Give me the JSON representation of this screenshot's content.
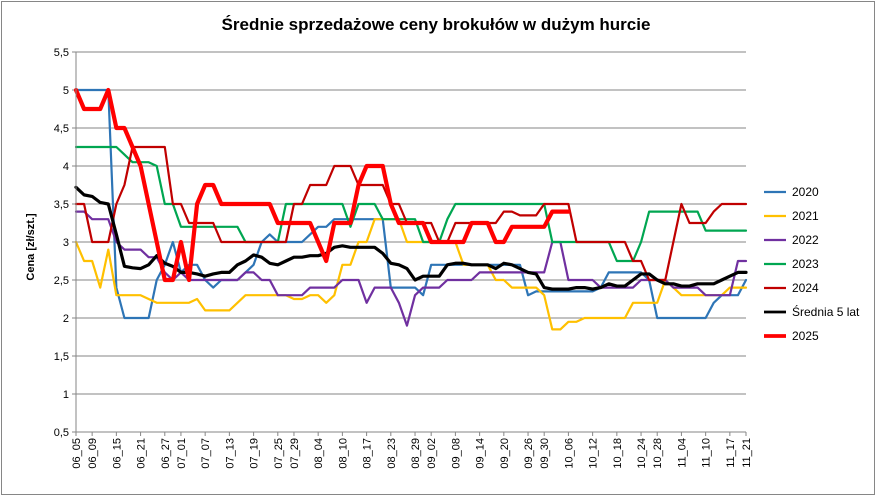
{
  "chart_data": {
    "type": "line",
    "title": "Średnie sprzedażowe ceny brokułów w dużym hurcie",
    "ylabel": "Cena [zł/szt.]",
    "xlabel": "",
    "ylim": [
      0.5,
      5.5
    ],
    "yticks": [
      "0,5",
      "1",
      "1,5",
      "2",
      "2,5",
      "3",
      "3,5",
      "4",
      "4,5",
      "5",
      "5,5"
    ],
    "grid": "horizontal",
    "legend_position": "right",
    "x": [
      "06_05",
      "06_07",
      "06_09",
      "06_11",
      "06_13",
      "06_15",
      "06_17",
      "06_19",
      "06_21",
      "06_23",
      "06_25",
      "06_27",
      "06_29",
      "07_01",
      "07_03",
      "07_05",
      "07_07",
      "07_09",
      "07_11",
      "07_13",
      "07_15",
      "07_17",
      "07_19",
      "07_21",
      "07_23",
      "07_25",
      "07_27",
      "07_29",
      "07_31",
      "08_02",
      "08_04",
      "08_06",
      "08_08",
      "08_10",
      "08_12",
      "08_14",
      "08_17",
      "08_19",
      "08_21",
      "08_23",
      "08_25",
      "08_27",
      "08_29",
      "08_31",
      "09_02",
      "09_04",
      "09_06",
      "09_08",
      "09_10",
      "09_12",
      "09_14",
      "09_16",
      "09_18",
      "09_20",
      "09_22",
      "09_24",
      "09_26",
      "09_28",
      "09_30",
      "10_02",
      "10_04",
      "10_06",
      "10_08",
      "10_10",
      "10_12",
      "10_14",
      "10_16",
      "10_18",
      "10_20",
      "10_22",
      "10_24",
      "10_26",
      "10_28",
      "10_30",
      "11_01",
      "11_04",
      "11_06",
      "11_08",
      "11_10",
      "11_12",
      "11_15",
      "11_17",
      "11_19",
      "11_21"
    ],
    "xtick_labels": [
      "06_05",
      "06_09",
      "06_15",
      "06_21",
      "06_27",
      "07_01",
      "07_07",
      "07_13",
      "07_19",
      "07_25",
      "07_29",
      "08_04",
      "08_10",
      "08_17",
      "08_23",
      "08_29",
      "09_02",
      "09_08",
      "09_14",
      "09_20",
      "09_26",
      "09_30",
      "10_06",
      "10_12",
      "10_18",
      "10_24",
      "10_28",
      "11_04",
      "11_10",
      "11_17",
      "11_21"
    ],
    "series": [
      {
        "name": "2020",
        "color": "#2E75B6",
        "width": 2.2,
        "values": [
          5.0,
          5.0,
          5.0,
          5.0,
          5.0,
          2.4,
          2.0,
          2.0,
          2.0,
          2.0,
          2.5,
          2.7,
          3.0,
          2.6,
          2.7,
          2.7,
          2.5,
          2.4,
          2.5,
          2.5,
          2.5,
          2.6,
          2.7,
          3.0,
          3.1,
          3.0,
          3.0,
          3.0,
          3.0,
          3.1,
          3.2,
          3.2,
          3.3,
          3.3,
          3.3,
          3.3,
          3.3,
          3.3,
          3.3,
          2.4,
          2.4,
          2.4,
          2.4,
          2.3,
          2.7,
          2.7,
          2.7,
          2.7,
          2.7,
          2.7,
          2.7,
          2.7,
          2.7,
          2.7,
          2.7,
          2.7,
          2.3,
          2.35,
          2.35,
          2.35,
          2.35,
          2.35,
          2.35,
          2.35,
          2.35,
          2.4,
          2.6,
          2.6,
          2.6,
          2.6,
          2.6,
          2.5,
          2.0,
          2.0,
          2.0,
          2.0,
          2.0,
          2.0,
          2.0,
          2.2,
          2.3,
          2.3,
          2.3,
          2.5
        ]
      },
      {
        "name": "2021",
        "color": "#FFC000",
        "width": 2.2,
        "values": [
          3.0,
          2.75,
          2.75,
          2.4,
          2.9,
          2.3,
          2.3,
          2.3,
          2.3,
          2.25,
          2.2,
          2.2,
          2.2,
          2.2,
          2.2,
          2.25,
          2.1,
          2.1,
          2.1,
          2.1,
          2.2,
          2.3,
          2.3,
          2.3,
          2.3,
          2.3,
          2.3,
          2.25,
          2.25,
          2.3,
          2.3,
          2.2,
          2.3,
          2.7,
          2.7,
          3.0,
          3.0,
          3.3,
          3.3,
          3.3,
          3.3,
          3.0,
          3.0,
          3.0,
          3.0,
          3.0,
          3.0,
          3.0,
          2.7,
          2.7,
          2.7,
          2.7,
          2.5,
          2.5,
          2.4,
          2.4,
          2.4,
          2.4,
          2.3,
          1.85,
          1.85,
          1.95,
          1.95,
          2.0,
          2.0,
          2.0,
          2.0,
          2.0,
          2.0,
          2.2,
          2.2,
          2.2,
          2.2,
          2.5,
          2.4,
          2.3,
          2.3,
          2.3,
          2.3,
          2.3,
          2.3,
          2.4,
          2.4,
          2.4
        ]
      },
      {
        "name": "2022",
        "color": "#7030A0",
        "width": 2.2,
        "values": [
          3.4,
          3.4,
          3.3,
          3.3,
          3.3,
          3.0,
          2.9,
          2.9,
          2.9,
          2.8,
          2.8,
          2.6,
          2.5,
          2.6,
          2.5,
          2.5,
          2.5,
          2.5,
          2.5,
          2.5,
          2.5,
          2.6,
          2.6,
          2.5,
          2.5,
          2.3,
          2.3,
          2.3,
          2.3,
          2.4,
          2.4,
          2.4,
          2.4,
          2.5,
          2.5,
          2.5,
          2.2,
          2.4,
          2.4,
          2.4,
          2.2,
          1.9,
          2.3,
          2.4,
          2.4,
          2.4,
          2.5,
          2.5,
          2.5,
          2.5,
          2.6,
          2.6,
          2.6,
          2.6,
          2.6,
          2.6,
          2.6,
          2.6,
          2.6,
          3.0,
          3.0,
          2.5,
          2.5,
          2.5,
          2.5,
          2.4,
          2.4,
          2.4,
          2.4,
          2.4,
          2.5,
          2.5,
          2.5,
          2.5,
          2.4,
          2.4,
          2.4,
          2.4,
          2.3,
          2.3,
          2.3,
          2.3,
          2.75,
          2.75
        ]
      },
      {
        "name": "2023",
        "color": "#00A651",
        "width": 2.2,
        "values": [
          4.25,
          4.25,
          4.25,
          4.25,
          4.25,
          4.25,
          4.15,
          4.05,
          4.05,
          4.05,
          4.0,
          3.5,
          3.5,
          3.2,
          3.2,
          3.2,
          3.2,
          3.2,
          3.2,
          3.2,
          3.2,
          3.0,
          3.0,
          3.0,
          3.0,
          3.0,
          3.5,
          3.5,
          3.5,
          3.5,
          3.5,
          3.5,
          3.5,
          3.5,
          3.2,
          3.5,
          3.5,
          3.5,
          3.3,
          3.3,
          3.3,
          3.3,
          3.3,
          3.0,
          3.0,
          3.0,
          3.3,
          3.5,
          3.5,
          3.5,
          3.5,
          3.5,
          3.5,
          3.5,
          3.5,
          3.5,
          3.5,
          3.5,
          3.5,
          3.0,
          3.0,
          3.0,
          3.0,
          3.0,
          3.0,
          3.0,
          3.0,
          2.75,
          2.75,
          2.75,
          3.0,
          3.4,
          3.4,
          3.4,
          3.4,
          3.4,
          3.4,
          3.4,
          3.15,
          3.15,
          3.15,
          3.15,
          3.15,
          3.15
        ]
      },
      {
        "name": "2024",
        "color": "#C00000",
        "width": 2.2,
        "values": [
          3.5,
          3.5,
          3.0,
          3.0,
          3.0,
          3.5,
          3.75,
          4.25,
          4.25,
          4.25,
          4.25,
          4.25,
          3.5,
          3.5,
          3.25,
          3.25,
          3.25,
          3.25,
          3.0,
          3.0,
          3.0,
          3.0,
          3.0,
          3.0,
          3.0,
          3.0,
          3.0,
          3.5,
          3.5,
          3.75,
          3.75,
          3.75,
          4.0,
          4.0,
          4.0,
          3.75,
          3.75,
          3.75,
          3.75,
          3.5,
          3.5,
          3.25,
          3.25,
          3.25,
          3.25,
          3.0,
          3.0,
          3.25,
          3.25,
          3.25,
          3.25,
          3.25,
          3.25,
          3.4,
          3.4,
          3.35,
          3.35,
          3.35,
          3.5,
          3.5,
          3.5,
          3.5,
          3.0,
          3.0,
          3.0,
          3.0,
          3.0,
          3.0,
          3.0,
          2.75,
          2.75,
          2.5,
          2.5,
          2.5,
          3.0,
          3.5,
          3.25,
          3.25,
          3.25,
          3.4,
          3.5,
          3.5,
          3.5,
          3.5
        ]
      },
      {
        "name": "Średnia 5 lat",
        "color": "#000000",
        "width": 3.2,
        "values": [
          3.72,
          3.62,
          3.6,
          3.52,
          3.5,
          3.1,
          2.68,
          2.66,
          2.65,
          2.7,
          2.82,
          2.72,
          2.68,
          2.6,
          2.6,
          2.58,
          2.55,
          2.58,
          2.6,
          2.6,
          2.7,
          2.75,
          2.83,
          2.8,
          2.72,
          2.7,
          2.75,
          2.8,
          2.8,
          2.82,
          2.82,
          2.85,
          2.93,
          2.95,
          2.93,
          2.93,
          2.93,
          2.93,
          2.85,
          2.72,
          2.7,
          2.65,
          2.5,
          2.55,
          2.55,
          2.55,
          2.7,
          2.72,
          2.72,
          2.7,
          2.7,
          2.7,
          2.65,
          2.72,
          2.7,
          2.65,
          2.6,
          2.58,
          2.4,
          2.38,
          2.38,
          2.38,
          2.4,
          2.4,
          2.38,
          2.4,
          2.45,
          2.42,
          2.42,
          2.5,
          2.58,
          2.58,
          2.5,
          2.45,
          2.45,
          2.42,
          2.42,
          2.45,
          2.45,
          2.45,
          2.5,
          2.55,
          2.6,
          2.6
        ]
      },
      {
        "name": "2025",
        "color": "#FF0000",
        "width": 4.2,
        "values": [
          5.0,
          4.75,
          4.75,
          4.75,
          5.0,
          4.5,
          4.5,
          4.25,
          4.0,
          3.5,
          3.0,
          2.5,
          2.5,
          3.0,
          2.5,
          3.5,
          3.75,
          3.75,
          3.5,
          3.5,
          3.5,
          3.5,
          3.5,
          3.5,
          3.5,
          3.25,
          3.25,
          3.25,
          3.25,
          3.25,
          3.0,
          2.75,
          3.25,
          3.25,
          3.25,
          3.75,
          4.0,
          4.0,
          4.0,
          3.5,
          3.25,
          3.25,
          3.25,
          3.25,
          3.0,
          3.0,
          3.0,
          3.0,
          3.0,
          3.25,
          3.25,
          3.25,
          3.0,
          3.0,
          3.2,
          3.2,
          3.2,
          3.2,
          3.2,
          3.4,
          3.4,
          3.4,
          null,
          null,
          null,
          null,
          null,
          null,
          null,
          null,
          null,
          null,
          null,
          null,
          null,
          null,
          null,
          null,
          null,
          null,
          null,
          null,
          null,
          null
        ]
      }
    ]
  }
}
